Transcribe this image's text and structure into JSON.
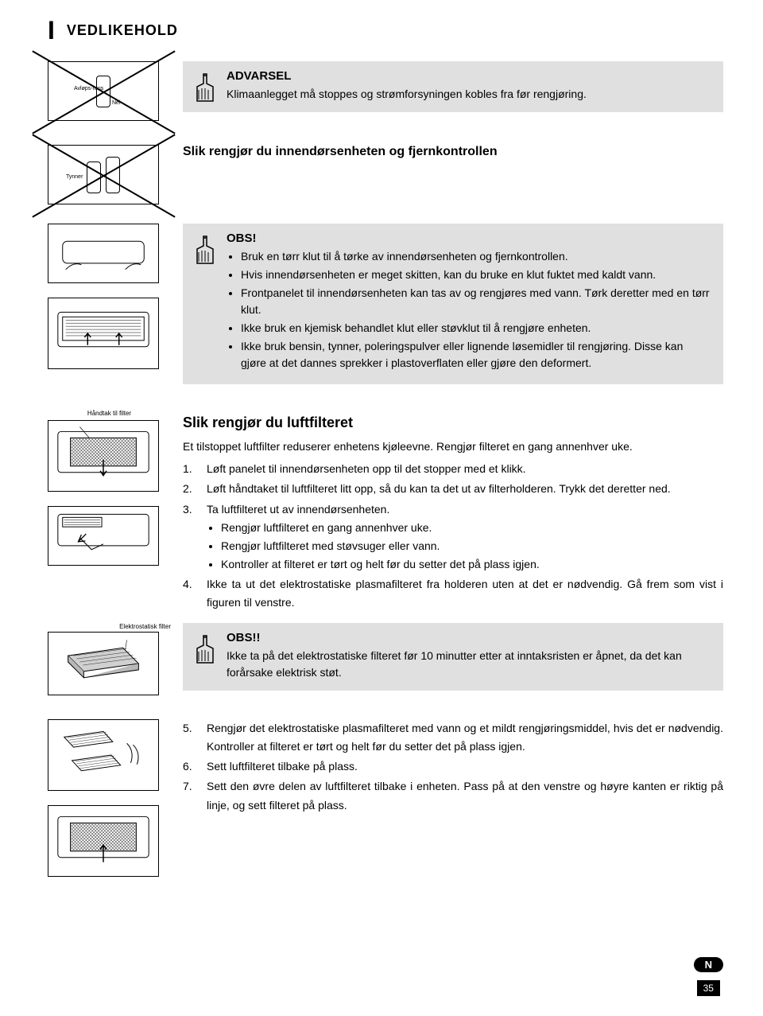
{
  "section_letter": "I",
  "section_title": "VEDLIKEHOLD",
  "warning1": {
    "title": "ADVARSEL",
    "text": "Klimaanlegget må stoppes og strømforsyningen kobles fra før rengjøring."
  },
  "subsection1_title": "Slik rengjør du innendørsenheten og fjernkontrollen",
  "obs1": {
    "title": "OBS!",
    "bullets": [
      "Bruk en tørr klut til å tørke av innendørsenheten og fjernkontrollen.",
      "Hvis innendørsenheten er meget skitten, kan du bruke en klut fuktet med kaldt vann.",
      "Frontpanelet til innendørsenheten kan tas av og rengjøres med vann. Tørk deretter med en tørr klut.",
      "Ikke bruk en kjemisk behandlet klut eller støvklut til å rengjøre enheten.",
      "Ikke bruk bensin, tynner, poleringspulver eller lignende løsemidler til rengjøring. Disse kan gjøre at det dannes sprekker i plastoverflaten eller gjøre den deformert."
    ]
  },
  "filter_section": {
    "title": "Slik rengjør du luftfilteret",
    "intro": "Et tilstoppet luftfilter reduserer enhetens kjøleevne. Rengjør filteret en gang annenhver uke.",
    "items": [
      {
        "num": "1.",
        "text": "Løft panelet til innendørsenheten opp til det stopper med et klikk."
      },
      {
        "num": "2.",
        "text": "Løft håndtaket til luftfilteret litt opp, så du kan ta det ut av filterholderen. Trykk det deretter ned."
      },
      {
        "num": "3.",
        "text": "Ta luftfilteret ut av innendørsenheten.",
        "bullets": [
          "Rengjør luftfilteret en gang annenhver uke.",
          "Rengjør luftfilteret med støvsuger eller vann.",
          "Kontroller at filteret er tørt og helt før du setter det på plass igjen."
        ]
      },
      {
        "num": "4.",
        "text": "Ikke ta ut det elektrostatiske plasmafilteret fra holderen uten at det er nødvendig. Gå frem som vist i figuren til venstre."
      }
    ]
  },
  "obs2": {
    "title": "OBS!!",
    "text": "Ikke ta på det elektrostatiske filteret før 10 minutter etter at inntaksristen er åpnet, da det kan forårsake elektrisk støt."
  },
  "final_items": [
    {
      "num": "5.",
      "text": "Rengjør det elektrostatiske plasmafilteret med vann og et mildt rengjø­ringsmiddel, hvis det er nødvendig. Kontroller at filteret er tørt og helt før du setter det på plass igjen."
    },
    {
      "num": "6.",
      "text": "Sett luftfilteret tilbake på plass."
    },
    {
      "num": "7.",
      "text": "Sett den øvre delen av luftfilteret tilbake i enheten. Pass på at den venstre og høyre kanten er riktig på linje, og sett filteret på plass."
    }
  ],
  "diagram_labels": {
    "spray1": "Avløps-rens",
    "spray1b": "Nei",
    "spray2": "Tynner",
    "handle": "Håndtak til filter",
    "electro": "Elektrostatisk filter"
  },
  "footer": {
    "badge": "N",
    "page": "35"
  },
  "colors": {
    "callout_bg": "#e0e0e0",
    "text": "#000000"
  }
}
